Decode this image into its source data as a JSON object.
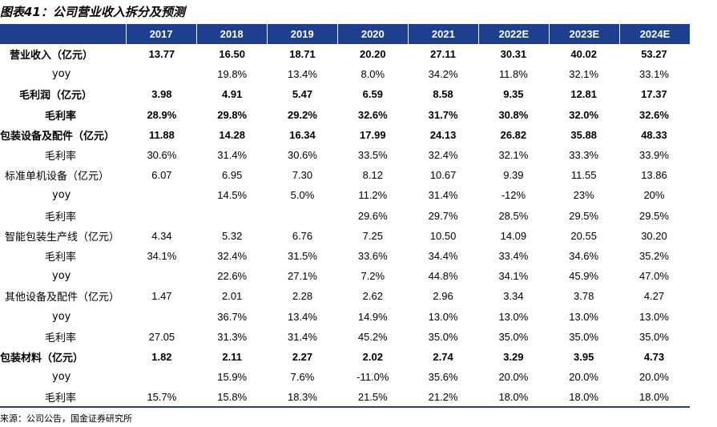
{
  "title": "图表41：公司营业收入拆分及预测",
  "header": [
    "",
    "2017",
    "2018",
    "2019",
    "2020",
    "2021",
    "2022E",
    "2023E",
    "2024E"
  ],
  "rows": [
    {
      "label": "营业收入（亿元）",
      "indent": 12,
      "bold": true,
      "cells": [
        "13.77",
        "16.50",
        "18.71",
        "20.20",
        "27.11",
        "30.31",
        "40.02",
        "53.27"
      ]
    },
    {
      "label": "yoy",
      "indent": 65,
      "bold": false,
      "cells": [
        "",
        "19.8%",
        "13.4%",
        "8.0%",
        "34.2%",
        "11.8%",
        "32.1%",
        "33.1%"
      ]
    },
    {
      "label": "毛利润（亿元）",
      "indent": 24,
      "bold": true,
      "cells": [
        "3.98",
        "4.91",
        "5.47",
        "6.59",
        "8.58",
        "9.35",
        "12.81",
        "17.37"
      ]
    },
    {
      "label": "毛利率",
      "indent": 56,
      "bold": true,
      "cells": [
        "28.9%",
        "29.8%",
        "29.2%",
        "32.6%",
        "31.7%",
        "30.8%",
        "32.0%",
        "32.6%"
      ]
    },
    {
      "label": "包装设备及配件（亿元）",
      "indent": 0,
      "bold": true,
      "cells": [
        "11.88",
        "14.28",
        "16.34",
        "17.99",
        "24.13",
        "26.82",
        "35.88",
        "48.33"
      ]
    },
    {
      "label": "毛利率",
      "indent": 56,
      "bold": false,
      "cells": [
        "30.6%",
        "31.4%",
        "30.6%",
        "33.5%",
        "32.4%",
        "32.1%",
        "33.3%",
        "33.9%"
      ]
    },
    {
      "label": "标准单机设备（亿元）",
      "indent": 6,
      "bold": false,
      "cells": [
        "6.07",
        "6.95",
        "7.30",
        "8.12",
        "10.67",
        "9.39",
        "11.55",
        "13.86"
      ]
    },
    {
      "label": "yoy",
      "indent": 65,
      "bold": false,
      "cells": [
        "",
        "14.5%",
        "5.0%",
        "11.2%",
        "31.4%",
        "-12%",
        "23%",
        "20%"
      ]
    },
    {
      "label": "毛利率",
      "indent": 56,
      "bold": false,
      "cells": [
        "",
        "",
        "",
        "29.6%",
        "29.7%",
        "28.5%",
        "29.5%",
        "29.5%"
      ]
    },
    {
      "label": "智能包装生产线（亿元）",
      "indent": 6,
      "bold": false,
      "cells": [
        "4.34",
        "5.32",
        "6.76",
        "7.25",
        "10.50",
        "14.09",
        "20.55",
        "30.20"
      ]
    },
    {
      "label": "毛利率",
      "indent": 56,
      "bold": false,
      "cells": [
        "34.1%",
        "32.4%",
        "31.5%",
        "33.6%",
        "34.4%",
        "33.4%",
        "34.6%",
        "35.2%"
      ]
    },
    {
      "label": "yoy",
      "indent": 65,
      "bold": false,
      "cells": [
        "",
        "22.6%",
        "27.1%",
        "7.2%",
        "44.8%",
        "34.1%",
        "45.9%",
        "47.0%"
      ]
    },
    {
      "label": "其他设备及配件（亿元）",
      "indent": 6,
      "bold": false,
      "cells": [
        "1.47",
        "2.01",
        "2.28",
        "2.62",
        "2.96",
        "3.34",
        "3.78",
        "4.27"
      ]
    },
    {
      "label": "yoy",
      "indent": 65,
      "bold": false,
      "cells": [
        "",
        "36.7%",
        "13.4%",
        "14.9%",
        "13.0%",
        "13.0%",
        "13.0%",
        "13.0%"
      ]
    },
    {
      "label": "毛利率",
      "indent": 56,
      "bold": false,
      "cells": [
        "27.05",
        "31.3%",
        "31.4%",
        "45.2%",
        "35.0%",
        "35.0%",
        "35.0%",
        "35.0%"
      ]
    },
    {
      "label": "包装材料（亿元）",
      "indent": 0,
      "bold": true,
      "cells": [
        "1.82",
        "2.11",
        "2.27",
        "2.02",
        "2.74",
        "3.29",
        "3.95",
        "4.73"
      ]
    },
    {
      "label": "yoy",
      "indent": 65,
      "bold": false,
      "cells": [
        "",
        "15.9%",
        "7.6%",
        "-11.0%",
        "35.6%",
        "20.0%",
        "20.0%",
        "20.0%"
      ]
    },
    {
      "label": "毛利率",
      "indent": 56,
      "bold": false,
      "cells": [
        "15.7%",
        "15.8%",
        "18.3%",
        "21.5%",
        "21.2%",
        "18.0%",
        "18.0%",
        "18.0%"
      ]
    }
  ],
  "source": "来源：公司公告，国金证券研究所"
}
